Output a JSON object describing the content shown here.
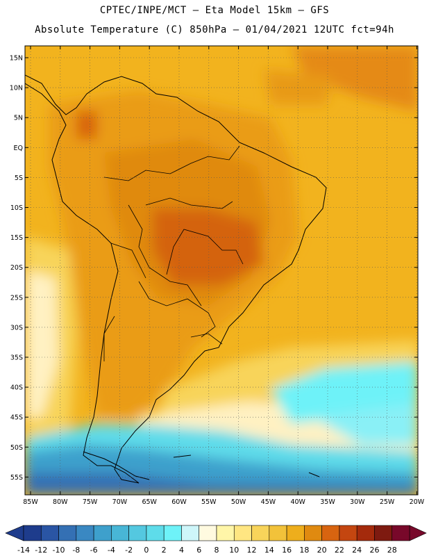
{
  "header": {
    "line1": "CPTEC/INPE/MCT –  Eta Model 15km – GFS",
    "line2": "Absolute Temperature (C) 850hPa – 01/04/2021 12UTC fct=94h"
  },
  "map": {
    "lat_labels": [
      "15N",
      "10N",
      "5N",
      "EQ",
      "5S",
      "10S",
      "15S",
      "20S",
      "25S",
      "30S",
      "35S",
      "40S",
      "45S",
      "50S",
      "55S"
    ],
    "lon_labels": [
      "85W",
      "80W",
      "75W",
      "70W",
      "65W",
      "60W",
      "55W",
      "50W",
      "45W",
      "40W",
      "35W",
      "30W",
      "25W",
      "20W"
    ]
  },
  "colorbar": {
    "labels": [
      "-14",
      "-12",
      "-10",
      "-8",
      "-6",
      "-4",
      "-2",
      "0",
      "2",
      "4",
      "6",
      "8",
      "10",
      "12",
      "14",
      "16",
      "18",
      "20",
      "22",
      "24",
      "26",
      "28"
    ],
    "colors": [
      "#1e3c8c",
      "#2a55a4",
      "#3470b4",
      "#3a88c2",
      "#3ea0cc",
      "#48b6d6",
      "#54c8e0",
      "#5edcea",
      "#6ef2f8",
      "#cef6fa",
      "#fffae0",
      "#fff6a8",
      "#ffe682",
      "#f8d45a",
      "#f2c23a",
      "#eeae1c",
      "#e08a10",
      "#d86410",
      "#c44610",
      "#a42a0c",
      "#7e1a10",
      "#78082a"
    ]
  }
}
